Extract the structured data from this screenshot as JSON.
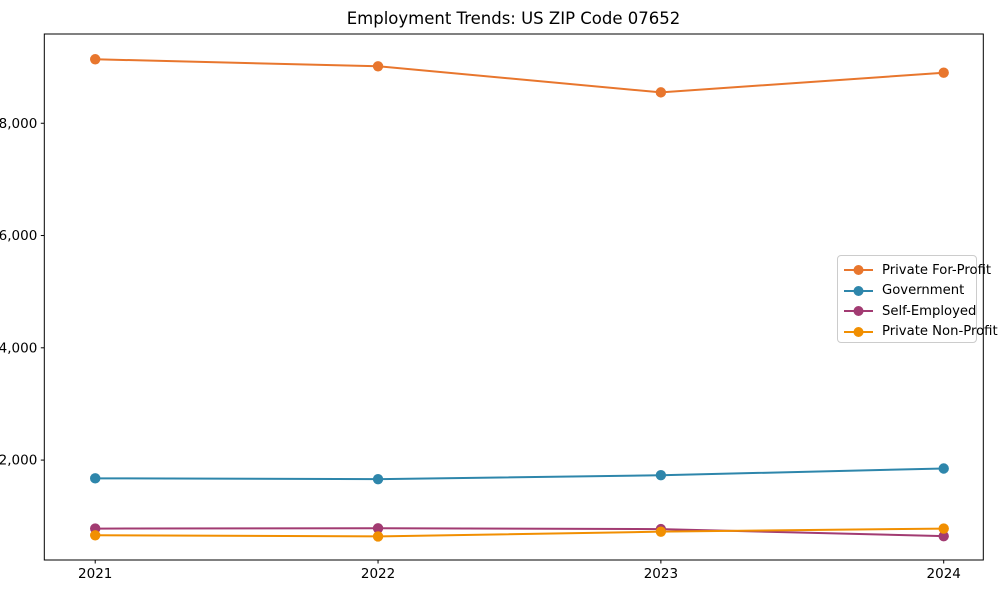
{
  "title": "Employment Trends: US ZIP Code 07652",
  "chart_data": {
    "type": "line",
    "title": "Employment Trends: US ZIP Code 07652",
    "xlabel": "",
    "ylabel": "",
    "x": [
      2021,
      2022,
      2023,
      2024
    ],
    "series": [
      {
        "name": "Private For-Profit",
        "color": "#E8762D",
        "values": [
          9140,
          9015,
          8550,
          8900
        ]
      },
      {
        "name": "Government",
        "color": "#2E86AB",
        "values": [
          1675,
          1660,
          1730,
          1850
        ]
      },
      {
        "name": "Self-Employed",
        "color": "#A23B72",
        "values": [
          780,
          785,
          770,
          645
        ]
      },
      {
        "name": "Private Non-Profit",
        "color": "#F18F01",
        "values": [
          660,
          640,
          725,
          780
        ]
      }
    ],
    "xlim": [
      2020.82,
      2024.14
    ],
    "ylim": [
      220,
      9590
    ],
    "xticks": [
      2021,
      2022,
      2023,
      2024
    ],
    "xtick_labels": [
      "2021",
      "2022",
      "2023",
      "2024"
    ],
    "yticks": [
      2000,
      4000,
      6000,
      8000
    ],
    "ytick_labels": [
      "2,000",
      "4,000",
      "6,000",
      "8,000"
    ],
    "grid": false,
    "legend_position": "center-right",
    "marker": "circle",
    "spine_color": "#000000",
    "legend_border_color": "#cccccc"
  }
}
